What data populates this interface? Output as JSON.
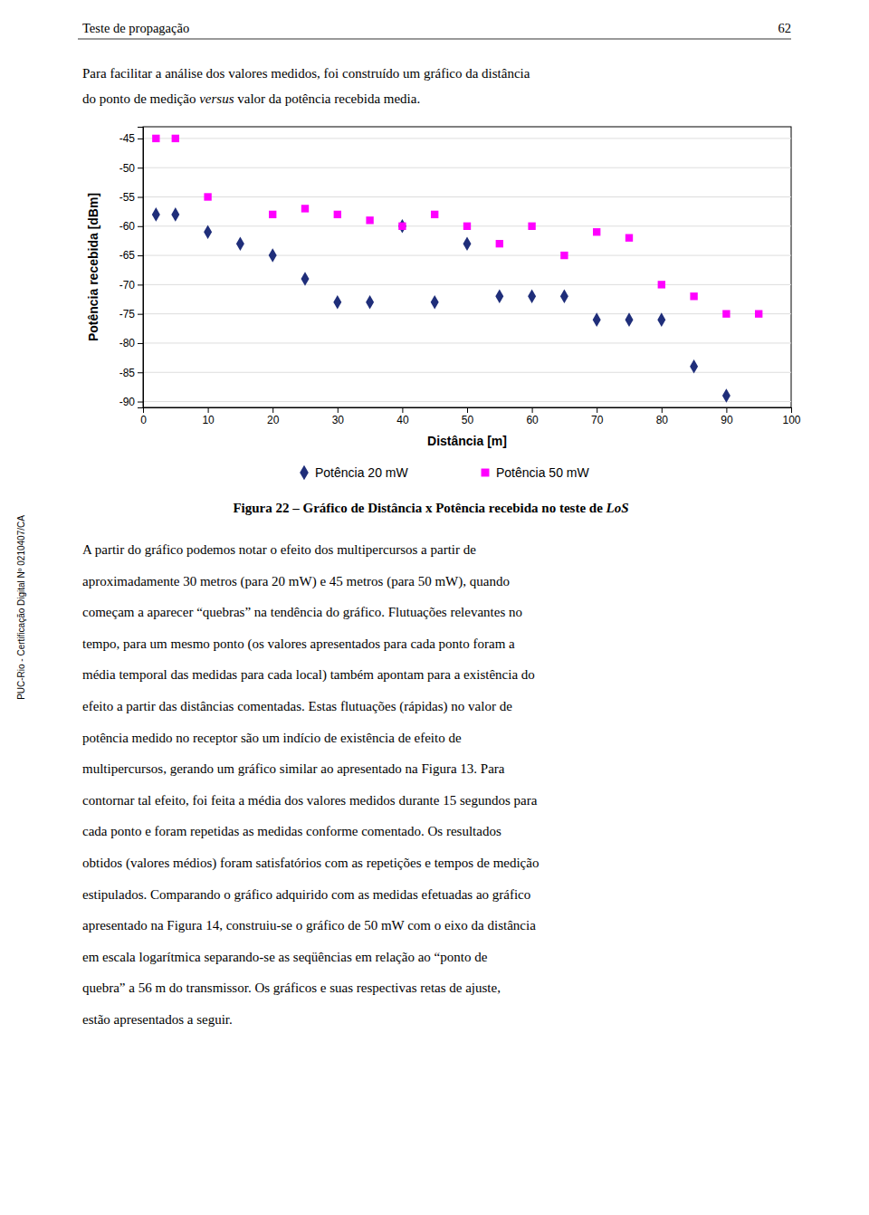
{
  "sidebar": "PUC-Rio - Certificação Digital Nº 0210407/CA",
  "header_left": "Teste de propagação",
  "header_right": "62",
  "intro1": "Para facilitar a análise dos valores medidos, foi construído um gráfico da distância",
  "intro2": [
    "do ponto de medição ",
    "versus",
    " valor da potência recebida media."
  ],
  "caption": [
    "Figura 22 – Gráfico de Distância x Potência recebida no teste de ",
    "LoS"
  ],
  "body_lines": [
    "A partir do gráfico podemos notar o efeito dos multipercursos a partir de",
    "aproximadamente 30 metros (para 20 mW) e 45 metros (para 50 mW), quando",
    "começam a aparecer “quebras” na tendência do gráfico. Flutuações relevantes no",
    "tempo, para um mesmo ponto (os valores apresentados para cada ponto foram a",
    "média temporal das medidas para cada local) também apontam para a existência do",
    "efeito a partir das distâncias comentadas. Estas flutuações (rápidas) no valor de",
    "potência medido no receptor são um indício de existência de efeito de",
    "multipercursos, gerando um gráfico similar ao apresentado na Figura 13. Para",
    "contornar tal efeito, foi feita a média dos valores medidos durante 15 segundos para",
    "cada ponto e foram repetidas as medidas conforme comentado. Os resultados",
    "obtidos (valores médios) foram satisfatórios com as repetições e tempos de medição",
    "estipulados. Comparando o gráfico adquirido com as medidas efetuadas ao gráfico",
    "apresentado na Figura 14, construiu-se o gráfico de 50 mW com o eixo da distância",
    "em escala logarítmica separando-se as seqüências em relação ao “ponto de",
    "quebra” a 56 m do transmissor. Os gráficos e suas respectivas retas de ajuste,",
    "estão apresentados a seguir."
  ],
  "chart_data": {
    "type": "scatter",
    "x_label": "Distância [m]",
    "y_label": "Potência recebida [dBm]",
    "xlim": [
      0,
      100
    ],
    "ylim": [
      -91,
      -43
    ],
    "xticks": [
      0,
      10,
      20,
      30,
      40,
      50,
      60,
      70,
      80,
      90,
      100
    ],
    "yticks": [
      -45,
      -50,
      -55,
      -60,
      -65,
      -70,
      -75,
      -80,
      -85,
      -90
    ],
    "grid": true,
    "legend": "bottom",
    "series": [
      {
        "name": "Potência 20 mW",
        "color": "#1F2E7A",
        "marker": "diamond",
        "x": [
          2,
          5,
          10,
          15,
          20,
          25,
          30,
          35,
          40,
          45,
          50,
          55,
          60,
          65,
          70,
          75,
          80,
          85,
          90
        ],
        "values": [
          -58,
          -58,
          -61,
          -63,
          -65,
          -69,
          -73,
          -73,
          -60,
          -73,
          -63,
          -72,
          -72,
          -72,
          -76,
          -76,
          -76,
          -84,
          -89
        ]
      },
      {
        "name": "Potência 50 mW",
        "color": "#FF00FF",
        "marker": "square",
        "x": [
          2,
          5,
          10,
          20,
          25,
          30,
          35,
          40,
          45,
          50,
          55,
          60,
          65,
          70,
          75,
          80,
          85,
          90,
          95
        ],
        "values": [
          -45,
          -45,
          -55,
          -58,
          -57,
          -58,
          -59,
          -60,
          -58,
          -60,
          -63,
          -60,
          -65,
          -61,
          -62,
          -70,
          -72,
          -75,
          -75
        ]
      }
    ]
  }
}
